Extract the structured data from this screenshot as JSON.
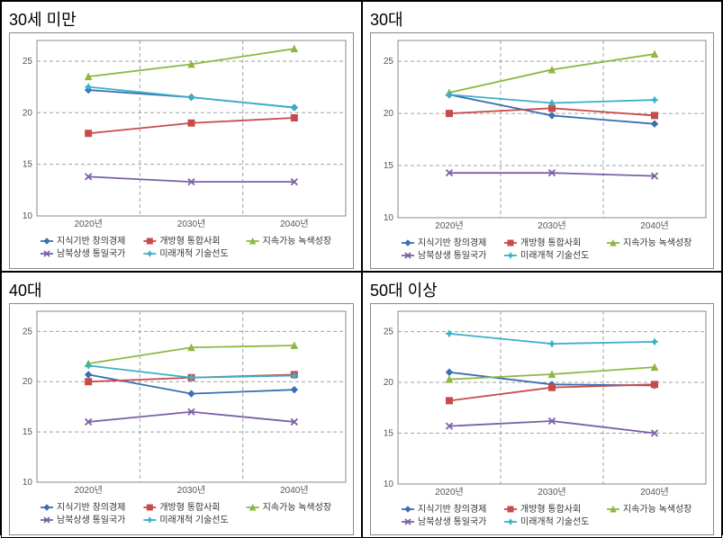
{
  "layout": {
    "overall_width": 803,
    "overall_height": 595,
    "grid": "2x2",
    "background_color": "#ffffff",
    "cell_border_color": "#000000",
    "chart_border_color": "#888888"
  },
  "axis": {
    "ylim": [
      10,
      27
    ],
    "yticks": [
      10,
      15,
      20,
      25
    ],
    "ytick_label_fontsize": 10,
    "ytick_label_color": "#555555",
    "xcategories": [
      "2020년",
      "2030년",
      "2040년"
    ],
    "xtick_label_fontsize": 10,
    "xtick_label_color": "#555555",
    "grid_color": "#a0a0a0",
    "grid_dash": "4 3",
    "axis_color": "#888888"
  },
  "series_meta": {
    "series": [
      {
        "key": "knowledge",
        "label": "지식기반 창의경제",
        "color": "#3a6fb0",
        "marker": "diamond"
      },
      {
        "key": "open",
        "label": "개방형 통합사회",
        "color": "#c84b4b",
        "marker": "square"
      },
      {
        "key": "green",
        "label": "지속가능 녹색성장",
        "color": "#8db843",
        "marker": "triangle"
      },
      {
        "key": "unify",
        "label": "남북상생 통일국가",
        "color": "#7b5fa7",
        "marker": "x"
      },
      {
        "key": "tech",
        "label": "미래개척 기술선도",
        "color": "#3bb0c9",
        "marker": "star"
      }
    ],
    "line_width": 1.8,
    "marker_size": 5,
    "legend_fontsize": 10,
    "legend_fill": "#333333"
  },
  "panels": [
    {
      "title": "30세 미만",
      "title_fontsize": 18,
      "data": {
        "knowledge": [
          22.2,
          21.5,
          20.5
        ],
        "open": [
          18.0,
          19.0,
          19.5
        ],
        "green": [
          23.5,
          24.7,
          26.2
        ],
        "unify": [
          13.8,
          13.3,
          13.3
        ],
        "tech": [
          22.5,
          21.5,
          20.5
        ]
      }
    },
    {
      "title": "30대",
      "title_fontsize": 18,
      "data": {
        "knowledge": [
          21.8,
          19.8,
          19.0
        ],
        "open": [
          20.0,
          20.5,
          19.8
        ],
        "green": [
          22.0,
          24.2,
          25.7
        ],
        "unify": [
          14.3,
          14.3,
          14.0
        ],
        "tech": [
          21.8,
          21.0,
          21.3
        ]
      }
    },
    {
      "title": "40대",
      "title_fontsize": 18,
      "data": {
        "knowledge": [
          20.7,
          18.8,
          19.2
        ],
        "open": [
          20.0,
          20.4,
          20.7
        ],
        "green": [
          21.8,
          23.4,
          23.6
        ],
        "unify": [
          16.0,
          17.0,
          16.0
        ],
        "tech": [
          21.6,
          20.4,
          20.6
        ]
      }
    },
    {
      "title": "50대 이상",
      "title_fontsize": 18,
      "data": {
        "knowledge": [
          21.0,
          19.8,
          19.7
        ],
        "open": [
          18.2,
          19.5,
          19.8
        ],
        "green": [
          20.3,
          20.8,
          21.5
        ],
        "unify": [
          15.7,
          16.2,
          15.0
        ],
        "tech": [
          24.8,
          23.8,
          24.0
        ]
      }
    }
  ]
}
